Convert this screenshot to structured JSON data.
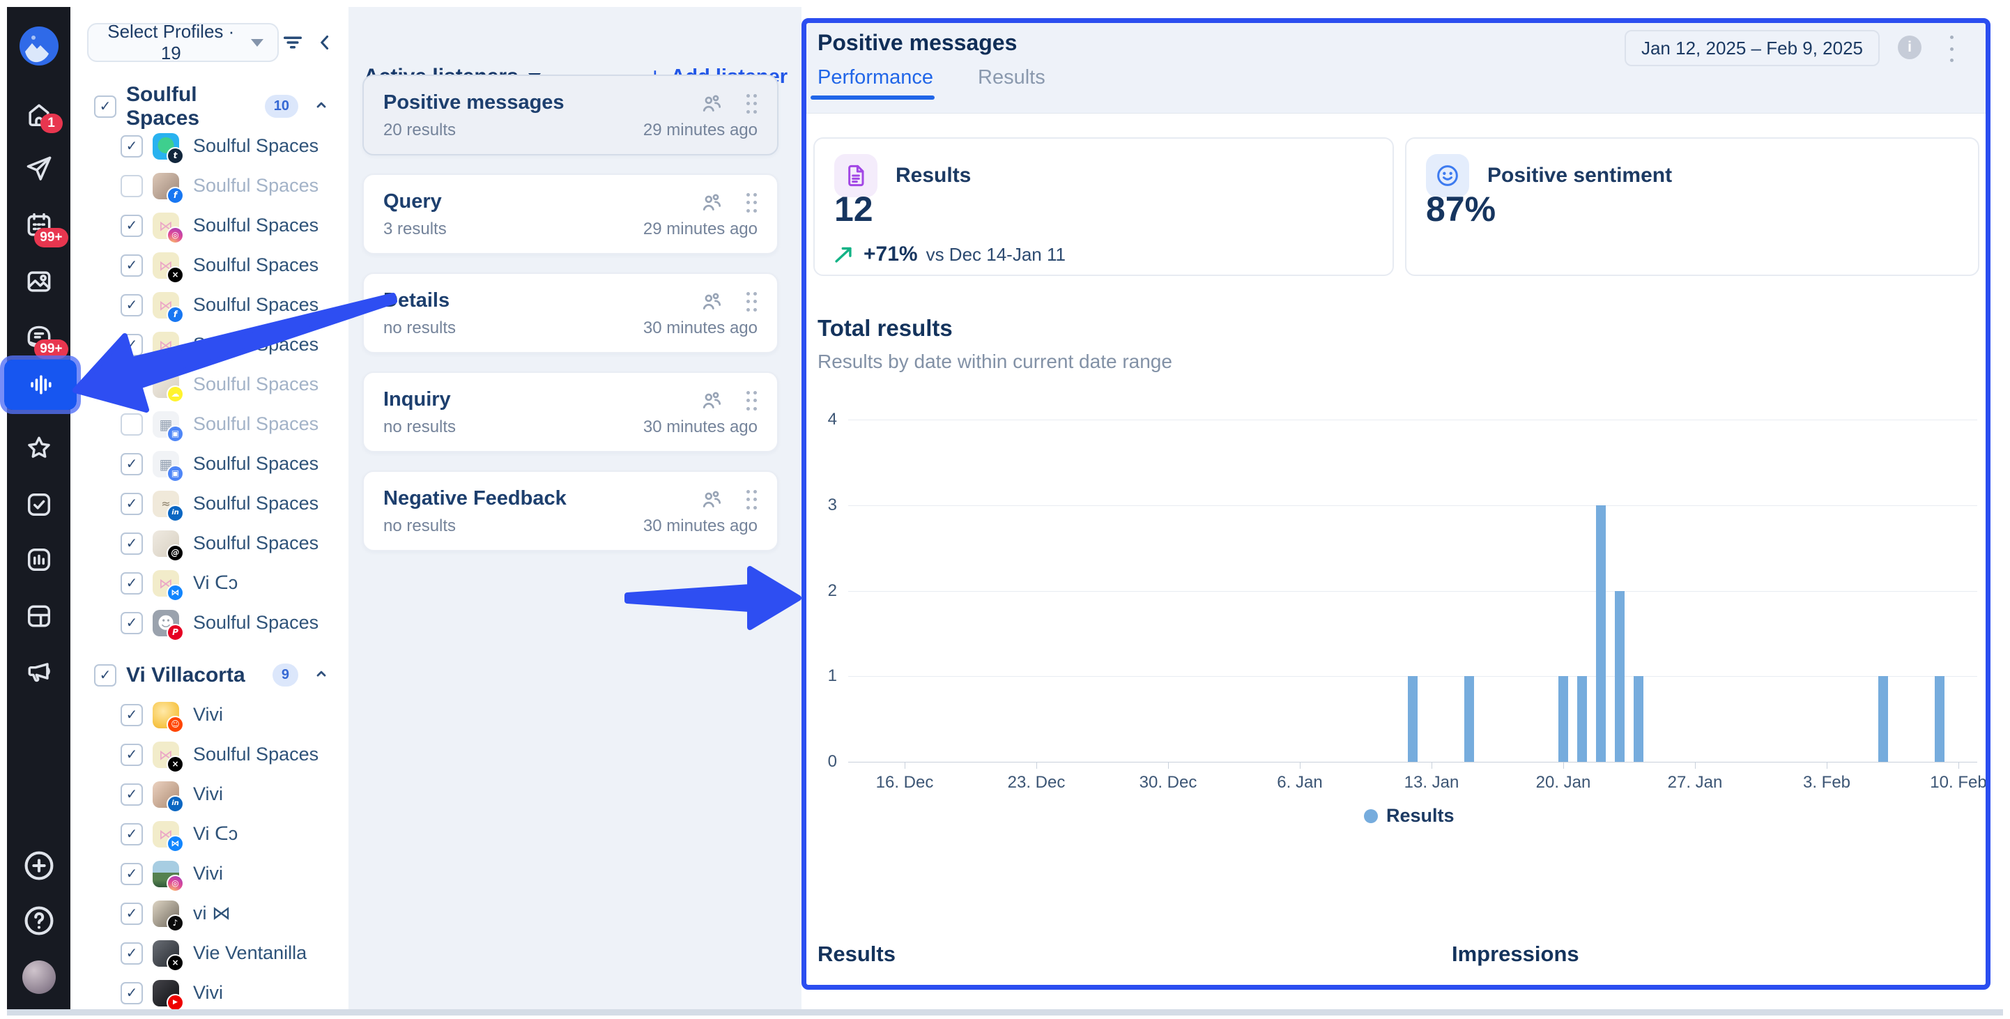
{
  "sidebar": {
    "badges": {
      "home": "1",
      "calendar": "99+",
      "inbox": "99+"
    },
    "items": [
      "home",
      "publishing",
      "calendar",
      "media-library",
      "inbox",
      "listening",
      "favorites",
      "approvals",
      "reports",
      "dashboards",
      "advocacy"
    ],
    "active_item": "listening",
    "footer": [
      "add",
      "help",
      "profile"
    ]
  },
  "profiles_panel": {
    "selector_label": "Select Profiles · 19",
    "groups": [
      {
        "name": "Soulful Spaces",
        "count": "10",
        "items": [
          {
            "label": "Soulful Spaces",
            "network": "tumblr",
            "avatar": "blue-sticker",
            "checked": true
          },
          {
            "label": "Soulful Spaces",
            "network": "facebook",
            "avatar": "photo-woman",
            "checked": false
          },
          {
            "label": "Soulful Spaces",
            "network": "instagram",
            "avatar": "butterfly",
            "checked": true
          },
          {
            "label": "Soulful Spaces",
            "network": "x",
            "avatar": "butterfly",
            "checked": true
          },
          {
            "label": "Soulful Spaces",
            "network": "facebook",
            "avatar": "butterfly",
            "checked": true
          },
          {
            "label": "Soulful Spaces",
            "network": "tiktok",
            "avatar": "butterfly",
            "checked": true
          },
          {
            "label": "Soulful Spaces",
            "network": "snapchat",
            "avatar": "photo-muted",
            "checked": false
          },
          {
            "label": "Soulful Spaces",
            "network": "google-business",
            "avatar": "building",
            "checked": false
          },
          {
            "label": "Soulful Spaces",
            "network": "google-business",
            "avatar": "building",
            "checked": true
          },
          {
            "label": "Soulful Spaces",
            "network": "linkedin",
            "avatar": "cream-text",
            "checked": true
          },
          {
            "label": "Soulful Spaces",
            "network": "threads",
            "avatar": "photo-muted",
            "checked": true
          },
          {
            "label": "Vi ᑕɔ",
            "network": "bluesky",
            "avatar": "butterfly",
            "checked": true
          },
          {
            "label": "Soulful Spaces",
            "network": "pinterest",
            "avatar": "person-gray",
            "checked": true
          }
        ]
      },
      {
        "name": "Vi Villacorta",
        "count": "9",
        "items": [
          {
            "label": "Vivi",
            "network": "reddit",
            "avatar": "cartoon-yellow",
            "checked": true
          },
          {
            "label": "Soulful Spaces",
            "network": "x",
            "avatar": "butterfly",
            "checked": true
          },
          {
            "label": "Vivi",
            "network": "linkedin",
            "avatar": "photo-selfie",
            "checked": true
          },
          {
            "label": "Vi ᑕɔ",
            "network": "bluesky",
            "avatar": "butterfly",
            "checked": true
          },
          {
            "label": "Vivi",
            "network": "instagram",
            "avatar": "photo-landscape",
            "checked": true
          },
          {
            "label": "vi ⋈",
            "network": "tiktok",
            "avatar": "photo-cap",
            "checked": true
          },
          {
            "label": "Vie Ventanilla",
            "network": "x",
            "avatar": "photo-dark",
            "checked": true
          },
          {
            "label": "Vivi",
            "network": "youtube",
            "avatar": "photo-black",
            "checked": true
          }
        ]
      }
    ]
  },
  "listeners_panel": {
    "title": "Active listeners",
    "add_label": "Add listener",
    "cards": [
      {
        "title": "Positive messages",
        "results": "20 results",
        "updated": "29 minutes ago",
        "selected": true
      },
      {
        "title": "Query",
        "results": "3 results",
        "updated": "29 minutes ago",
        "selected": false
      },
      {
        "title": "Details",
        "results": "no results",
        "updated": "30 minutes ago",
        "selected": false
      },
      {
        "title": "Inquiry",
        "results": "no results",
        "updated": "30 minutes ago",
        "selected": false
      },
      {
        "title": "Negative Feedback",
        "results": "no results",
        "updated": "30 minutes ago",
        "selected": false
      }
    ]
  },
  "main_panel": {
    "title": "Positive messages",
    "tabs": [
      {
        "label": "Performance",
        "active": true
      },
      {
        "label": "Results",
        "active": false
      }
    ],
    "date_range": "Jan 12, 2025 – Feb 9, 2025",
    "stats": [
      {
        "label": "Results",
        "value": "12",
        "trend": "+71%",
        "trend_note": "vs Dec 14-Jan 11",
        "icon": "document-icon",
        "accent": "#a855f7"
      },
      {
        "label": "Positive sentiment",
        "value": "87%",
        "icon": "smiley-icon",
        "accent": "#3b82f6"
      }
    ],
    "section_title": "Total results",
    "section_subtitle": "Results by date within current date range",
    "bottom_sections": [
      "Results",
      "Impressions"
    ]
  },
  "chart_data": {
    "type": "bar",
    "title": "Total results",
    "subtitle": "Results by date within current date range",
    "series": [
      {
        "name": "Results",
        "color": "#76acdd",
        "points": [
          {
            "date": "2025-01-12",
            "value": 1
          },
          {
            "date": "2025-01-15",
            "value": 1
          },
          {
            "date": "2025-01-20",
            "value": 1
          },
          {
            "date": "2025-01-21",
            "value": 1
          },
          {
            "date": "2025-01-22",
            "value": 3
          },
          {
            "date": "2025-01-23",
            "value": 2
          },
          {
            "date": "2025-01-24",
            "value": 1
          },
          {
            "date": "2025-02-06",
            "value": 1
          },
          {
            "date": "2025-02-09",
            "value": 1
          }
        ]
      }
    ],
    "x_axis": {
      "start": "2024-12-13",
      "end": "2025-02-11",
      "ticks": [
        {
          "date": "2024-12-16",
          "label": "16. Dec"
        },
        {
          "date": "2024-12-23",
          "label": "23. Dec"
        },
        {
          "date": "2024-12-30",
          "label": "30. Dec"
        },
        {
          "date": "2025-01-06",
          "label": "6. Jan"
        },
        {
          "date": "2025-01-13",
          "label": "13. Jan"
        },
        {
          "date": "2025-01-20",
          "label": "20. Jan"
        },
        {
          "date": "2025-01-27",
          "label": "27. Jan"
        },
        {
          "date": "2025-02-03",
          "label": "3. Feb"
        },
        {
          "date": "2025-02-10",
          "label": "10. Feb"
        }
      ]
    },
    "y_axis": {
      "min": 0,
      "max": 4,
      "ticks": [
        0,
        1,
        2,
        3,
        4
      ]
    },
    "legend": {
      "label": "Results",
      "position": "bottom"
    },
    "grid": true
  }
}
